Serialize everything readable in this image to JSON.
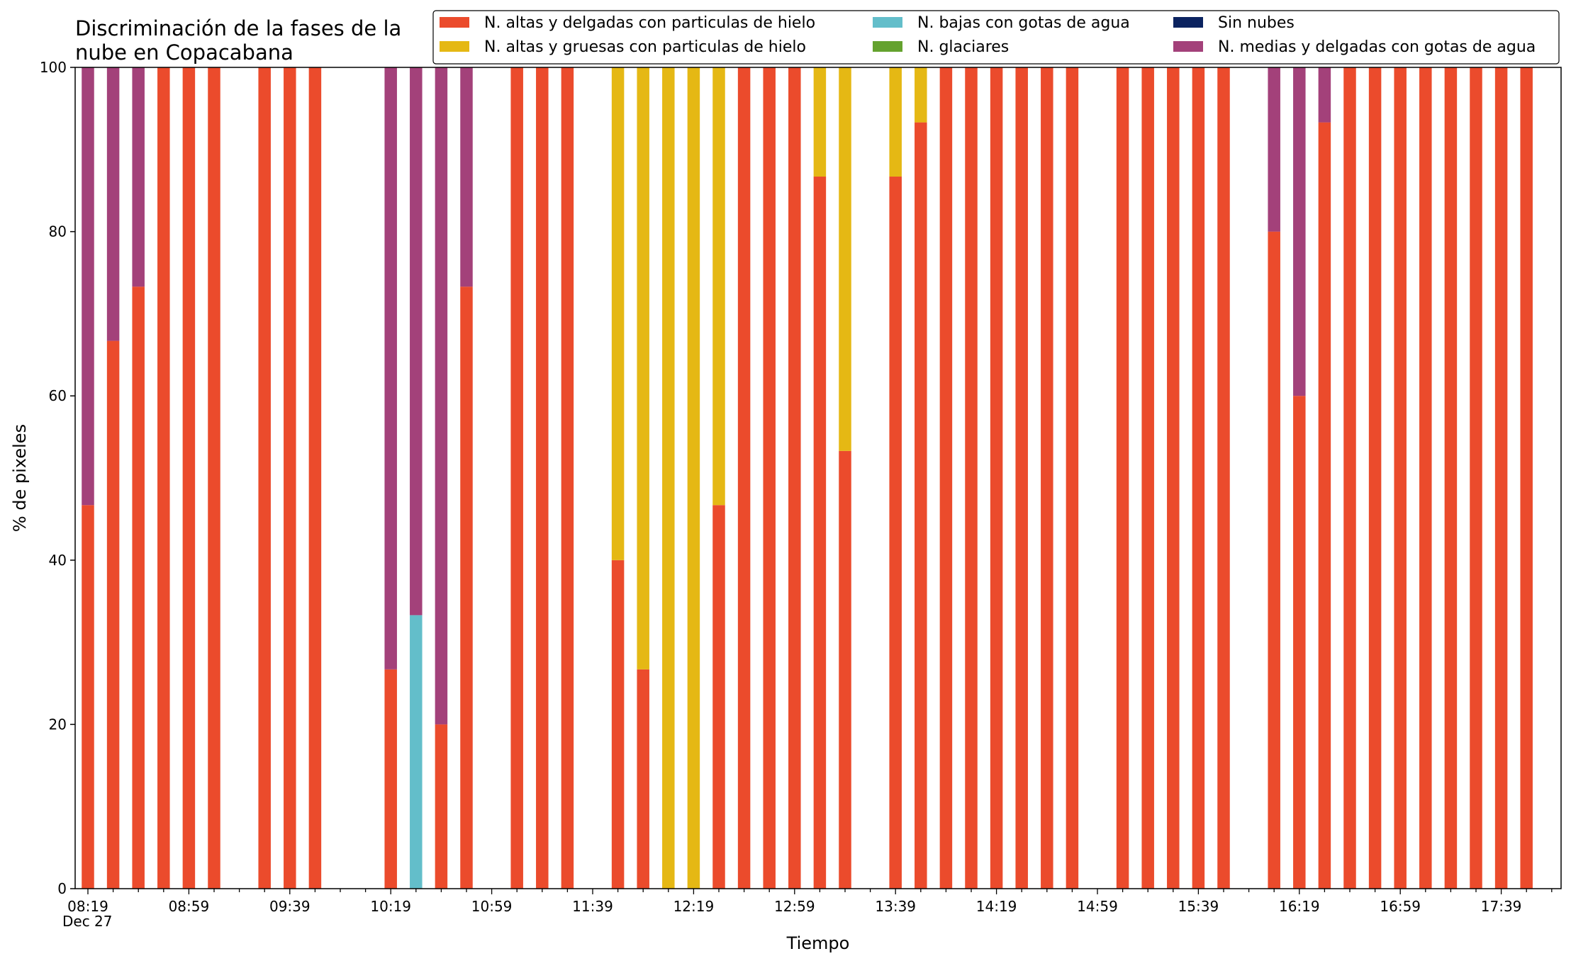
{
  "chart_data": {
    "type": "bar",
    "stacked": true,
    "title_lines": [
      "Discriminación de la fases de la",
      "nube en Copacabana"
    ],
    "xlabel": "Tiempo",
    "ylabel": "% de pixeles",
    "ylim": [
      0,
      100
    ],
    "yticks": [
      0,
      20,
      40,
      60,
      80,
      100
    ],
    "x_date_label": "Dec 27",
    "x_start": "08:19",
    "x_step_minutes": 10,
    "x_end": "17:59",
    "x_ticks": [
      "08:19",
      "08:59",
      "09:39",
      "10:19",
      "10:59",
      "11:39",
      "12:19",
      "12:59",
      "13:39",
      "14:19",
      "14:59",
      "15:39",
      "16:19",
      "16:59",
      "17:39"
    ],
    "legend_position": "top-right",
    "grid": false,
    "series": [
      {
        "name": "N. altas y delgadas con particulas de hielo",
        "color": "#EB4B2C"
      },
      {
        "name": "N. altas y gruesas con particulas de hielo",
        "color": "#E5B814"
      },
      {
        "name": "N. bajas con gotas de agua",
        "color": "#63BECA"
      },
      {
        "name": "N. glaciares",
        "color": "#64A22E"
      },
      {
        "name": "Sin nubes",
        "color": "#0B2360"
      },
      {
        "name": "N. medias y delgadas con gotas de agua",
        "color": "#A3417A"
      }
    ],
    "points": [
      {
        "time": "08:19",
        "values": [
          46.7,
          0,
          0,
          0,
          0,
          53.3
        ]
      },
      {
        "time": "08:29",
        "values": [
          66.7,
          0,
          0,
          0,
          0,
          33.3
        ]
      },
      {
        "time": "08:39",
        "values": [
          73.3,
          0,
          0,
          0,
          0,
          26.7
        ]
      },
      {
        "time": "08:49",
        "values": [
          100,
          0,
          0,
          0,
          0,
          0
        ]
      },
      {
        "time": "08:59",
        "values": [
          100,
          0,
          0,
          0,
          0,
          0
        ]
      },
      {
        "time": "09:09",
        "values": [
          100,
          0,
          0,
          0,
          0,
          0
        ]
      },
      {
        "time": "09:29",
        "values": [
          100,
          0,
          0,
          0,
          0,
          0
        ]
      },
      {
        "time": "09:39",
        "values": [
          100,
          0,
          0,
          0,
          0,
          0
        ]
      },
      {
        "time": "09:49",
        "values": [
          100,
          0,
          0,
          0,
          0,
          0
        ]
      },
      {
        "time": "10:19",
        "values": [
          26.7,
          0,
          0,
          0,
          0,
          73.3
        ]
      },
      {
        "time": "10:29",
        "values": [
          0,
          0,
          33.3,
          0,
          0,
          66.7
        ]
      },
      {
        "time": "10:39",
        "values": [
          20,
          0,
          0,
          0,
          0,
          80
        ]
      },
      {
        "time": "10:49",
        "values": [
          73.3,
          0,
          0,
          0,
          0,
          26.7
        ]
      },
      {
        "time": "11:09",
        "values": [
          100,
          0,
          0,
          0,
          0,
          0
        ]
      },
      {
        "time": "11:19",
        "values": [
          100,
          0,
          0,
          0,
          0,
          0
        ]
      },
      {
        "time": "11:29",
        "values": [
          100,
          0,
          0,
          0,
          0,
          0
        ]
      },
      {
        "time": "11:49",
        "values": [
          40,
          60,
          0,
          0,
          0,
          0
        ]
      },
      {
        "time": "11:59",
        "values": [
          26.7,
          73.3,
          0,
          0,
          0,
          0
        ]
      },
      {
        "time": "12:09",
        "values": [
          0,
          100,
          0,
          0,
          0,
          0
        ]
      },
      {
        "time": "12:19",
        "values": [
          0,
          100,
          0,
          0,
          0,
          0
        ]
      },
      {
        "time": "12:29",
        "values": [
          46.7,
          53.3,
          0,
          0,
          0,
          0
        ]
      },
      {
        "time": "12:39",
        "values": [
          100,
          0,
          0,
          0,
          0,
          0
        ]
      },
      {
        "time": "12:49",
        "values": [
          100,
          0,
          0,
          0,
          0,
          0
        ]
      },
      {
        "time": "12:59",
        "values": [
          100,
          0,
          0,
          0,
          0,
          0
        ]
      },
      {
        "time": "13:09",
        "values": [
          86.7,
          13.3,
          0,
          0,
          0,
          0
        ]
      },
      {
        "time": "13:19",
        "values": [
          53.3,
          46.7,
          0,
          0,
          0,
          0
        ]
      },
      {
        "time": "13:39",
        "values": [
          86.7,
          13.3,
          0,
          0,
          0,
          0
        ]
      },
      {
        "time": "13:49",
        "values": [
          93.3,
          6.7,
          0,
          0,
          0,
          0
        ]
      },
      {
        "time": "13:59",
        "values": [
          100,
          0,
          0,
          0,
          0,
          0
        ]
      },
      {
        "time": "14:09",
        "values": [
          100,
          0,
          0,
          0,
          0,
          0
        ]
      },
      {
        "time": "14:19",
        "values": [
          100,
          0,
          0,
          0,
          0,
          0
        ]
      },
      {
        "time": "14:29",
        "values": [
          100,
          0,
          0,
          0,
          0,
          0
        ]
      },
      {
        "time": "14:39",
        "values": [
          100,
          0,
          0,
          0,
          0,
          0
        ]
      },
      {
        "time": "14:49",
        "values": [
          100,
          0,
          0,
          0,
          0,
          0
        ]
      },
      {
        "time": "15:09",
        "values": [
          100,
          0,
          0,
          0,
          0,
          0
        ]
      },
      {
        "time": "15:19",
        "values": [
          100,
          0,
          0,
          0,
          0,
          0
        ]
      },
      {
        "time": "15:29",
        "values": [
          100,
          0,
          0,
          0,
          0,
          0
        ]
      },
      {
        "time": "15:39",
        "values": [
          100,
          0,
          0,
          0,
          0,
          0
        ]
      },
      {
        "time": "15:49",
        "values": [
          100,
          0,
          0,
          0,
          0,
          0
        ]
      },
      {
        "time": "16:09",
        "values": [
          80,
          0,
          0,
          0,
          0,
          20
        ]
      },
      {
        "time": "16:19",
        "values": [
          60,
          0,
          0,
          0,
          0,
          40
        ]
      },
      {
        "time": "16:29",
        "values": [
          93.3,
          0,
          0,
          0,
          0,
          6.7
        ]
      },
      {
        "time": "16:39",
        "values": [
          100,
          0,
          0,
          0,
          0,
          0
        ]
      },
      {
        "time": "16:49",
        "values": [
          100,
          0,
          0,
          0,
          0,
          0
        ]
      },
      {
        "time": "16:59",
        "values": [
          100,
          0,
          0,
          0,
          0,
          0
        ]
      },
      {
        "time": "17:09",
        "values": [
          100,
          0,
          0,
          0,
          0,
          0
        ]
      },
      {
        "time": "17:19",
        "values": [
          100,
          0,
          0,
          0,
          0,
          0
        ]
      },
      {
        "time": "17:29",
        "values": [
          100,
          0,
          0,
          0,
          0,
          0
        ]
      },
      {
        "time": "17:39",
        "values": [
          100,
          0,
          0,
          0,
          0,
          0
        ]
      },
      {
        "time": "17:49",
        "values": [
          100,
          0,
          0,
          0,
          0,
          0
        ]
      }
    ]
  }
}
